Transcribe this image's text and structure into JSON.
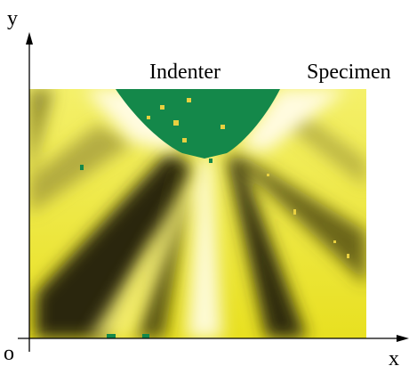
{
  "axes": {
    "y_label": "y",
    "x_label": "x",
    "origin_label": "o"
  },
  "labels": {
    "indenter": "Indenter",
    "specimen": "Specimen"
  }
}
